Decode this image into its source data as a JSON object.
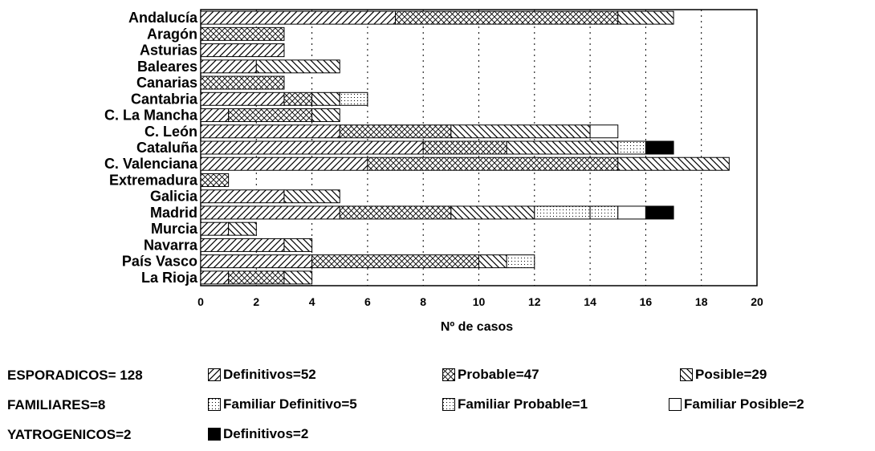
{
  "chart_data": {
    "type": "bar",
    "orientation": "horizontal",
    "stacked": true,
    "categories": [
      "Andalucía",
      "Aragón",
      "Asturias",
      "Baleares",
      "Canarias",
      "Cantabria",
      "C. La Mancha",
      "C. León",
      "Cataluña",
      "C. Valenciana",
      "Extremadura",
      "Galicia",
      "Madrid",
      "Murcia",
      "Navarra",
      "País Vasco",
      "La Rioja"
    ],
    "series": [
      {
        "name": "Definitivos",
        "group": "ESPORADICOS",
        "pattern": "diag-fwd",
        "values": [
          7,
          0,
          3,
          2,
          0,
          3,
          1,
          5,
          8,
          6,
          0,
          3,
          5,
          1,
          3,
          4,
          1
        ]
      },
      {
        "name": "Probable",
        "group": "ESPORADICOS",
        "pattern": "crosshatch",
        "values": [
          8,
          3,
          0,
          0,
          3,
          1,
          3,
          4,
          3,
          9,
          1,
          0,
          4,
          0,
          0,
          6,
          2
        ]
      },
      {
        "name": "Posible",
        "group": "ESPORADICOS",
        "pattern": "diag-back",
        "values": [
          2,
          0,
          0,
          3,
          0,
          1,
          1,
          5,
          4,
          4,
          0,
          2,
          3,
          1,
          1,
          1,
          1
        ]
      },
      {
        "name": "Familiar Definitivo",
        "group": "FAMILIARES",
        "pattern": "dots",
        "values": [
          0,
          0,
          0,
          0,
          0,
          1,
          0,
          0,
          1,
          0,
          0,
          0,
          2,
          0,
          0,
          1,
          0
        ]
      },
      {
        "name": "Familiar Probable",
        "group": "FAMILIARES",
        "pattern": "dots",
        "values": [
          0,
          0,
          0,
          0,
          0,
          0,
          0,
          0,
          0,
          0,
          0,
          0,
          1,
          0,
          0,
          0,
          0
        ]
      },
      {
        "name": "Familiar Posible",
        "group": "FAMILIARES",
        "pattern": "blank",
        "values": [
          0,
          0,
          0,
          0,
          0,
          0,
          0,
          1,
          0,
          0,
          0,
          0,
          1,
          0,
          0,
          0,
          0
        ]
      },
      {
        "name": "Definitivos",
        "group": "YATROGENICOS",
        "pattern": "solid",
        "values": [
          0,
          0,
          0,
          0,
          0,
          0,
          0,
          0,
          1,
          0,
          0,
          0,
          1,
          0,
          0,
          0,
          0
        ]
      }
    ],
    "xlabel": "Nº de casos",
    "ylabel": "",
    "xlim": [
      0,
      20
    ],
    "xticks": [
      "0",
      "2",
      "4",
      "6",
      "8",
      "10",
      "12",
      "14",
      "16",
      "18",
      "20"
    ],
    "grid": "vertical dotted"
  },
  "legend": {
    "groups": [
      {
        "label": "ESPORADICOS= 128"
      },
      {
        "label": "FAMILIARES=8"
      },
      {
        "label": "YATROGENICOS=2"
      }
    ],
    "items": [
      {
        "label": "Definitivos=52",
        "pattern": "diag-fwd"
      },
      {
        "label": "Probable=47",
        "pattern": "crosshatch"
      },
      {
        "label": "Posible=29",
        "pattern": "diag-back"
      },
      {
        "label": "Familiar Definitivo=5",
        "pattern": "dots"
      },
      {
        "label": "Familiar Probable=1",
        "pattern": "dots"
      },
      {
        "label": "Familiar Posible=2",
        "pattern": "blank"
      },
      {
        "label": "Definitivos=2",
        "pattern": "solid"
      }
    ]
  }
}
